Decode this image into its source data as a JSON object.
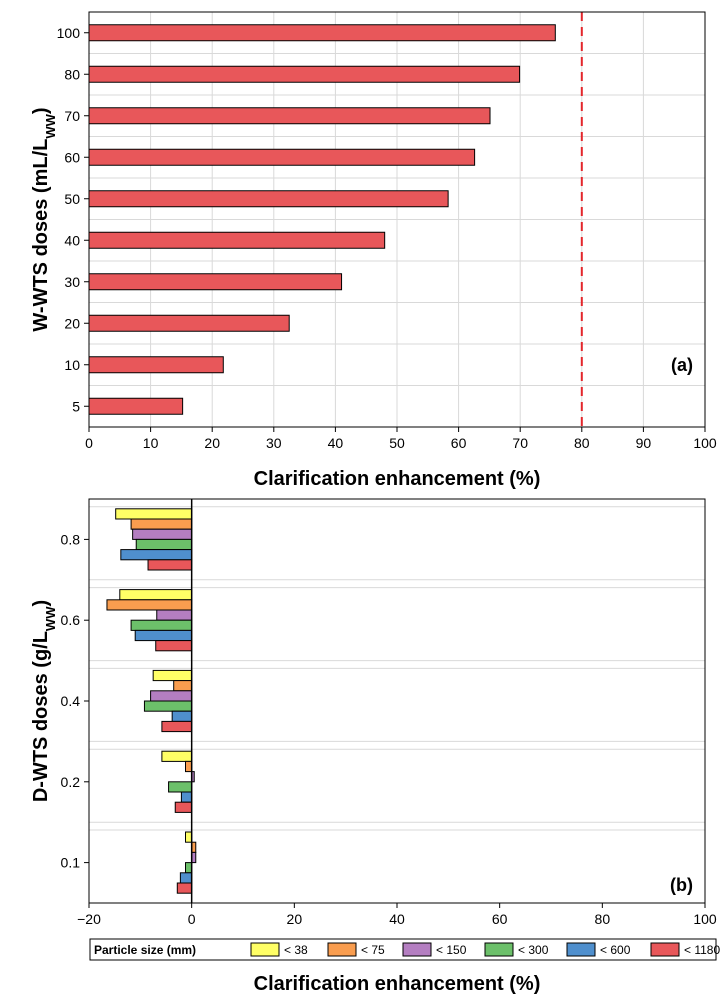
{
  "chart_data": [
    {
      "type": "bar",
      "orientation": "horizontal",
      "panel_label": "(a)",
      "categories": [
        "5",
        "10",
        "20",
        "30",
        "40",
        "50",
        "60",
        "70",
        "80",
        "100"
      ],
      "values": [
        15.2,
        21.8,
        32.5,
        41.0,
        48.0,
        58.3,
        62.6,
        65.1,
        69.9,
        75.7
      ],
      "xlabel": "Clarification enhancement (%)",
      "ylabel": "W-WTS doses (mL/L",
      "ylabel_sub": "WW",
      "ylabel_close": ")",
      "xlim": [
        0,
        100
      ],
      "xticks": [
        0,
        10,
        20,
        30,
        40,
        50,
        60,
        70,
        80,
        90,
        100
      ],
      "reference_line_x": 80,
      "reference_line_color": "#e3262b",
      "bar_color": "#e8575a",
      "grid": true
    },
    {
      "type": "bar",
      "orientation": "horizontal",
      "grouped": true,
      "panel_label": "(b)",
      "categories": [
        "0.1",
        "0.2",
        "0.4",
        "0.6",
        "0.8"
      ],
      "xlabel": "Clarification enhancement (%)",
      "ylabel": "D-WTS doses (g/L",
      "ylabel_sub": "WW",
      "ylabel_close": ")",
      "xlim": [
        -20,
        100
      ],
      "xticks": [
        -20,
        0,
        20,
        40,
        60,
        80,
        100
      ],
      "xtick_labels": [
        "−20",
        "0",
        "20",
        "40",
        "60",
        "80",
        "100"
      ],
      "grid": true,
      "legend": {
        "title": "Particle size (mm)",
        "placement": "bottom"
      },
      "series": [
        {
          "name": "< 38",
          "color": "#ffff66",
          "values": [
            -1.2,
            -5.8,
            -7.5,
            -14.0,
            -14.8
          ]
        },
        {
          "name": "< 75",
          "color": "#f99d4f",
          "values": [
            0.8,
            -1.2,
            -3.5,
            -16.5,
            -11.8
          ]
        },
        {
          "name": "< 150",
          "color": "#b47ec1",
          "values": [
            0.8,
            0.5,
            -8.0,
            -6.8,
            -11.5
          ]
        },
        {
          "name": "< 300",
          "color": "#6cc06a",
          "values": [
            -1.2,
            -4.5,
            -9.2,
            -11.8,
            -10.8
          ]
        },
        {
          "name": "< 600",
          "color": "#4f8fcd",
          "values": [
            -2.2,
            -2.0,
            -3.8,
            -11.0,
            -13.8
          ]
        },
        {
          "name": "< 1180",
          "color": "#e8575a",
          "values": [
            -2.8,
            -3.2,
            -5.8,
            -7.0,
            -8.5
          ]
        }
      ]
    }
  ]
}
